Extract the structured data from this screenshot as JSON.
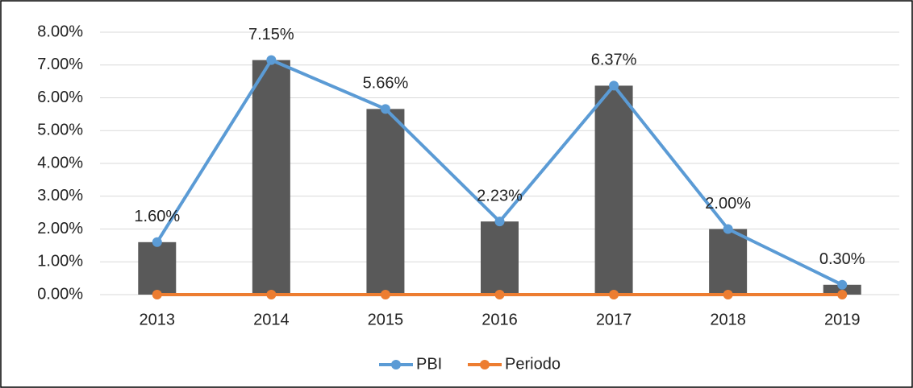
{
  "chart_data": {
    "type": "bar_line",
    "categories": [
      "2013",
      "2014",
      "2015",
      "2016",
      "2017",
      "2018",
      "2019"
    ],
    "series": [
      {
        "name": "PBI",
        "color": "#5b9bd5",
        "bar_color": "#595959",
        "values": [
          1.6,
          7.15,
          5.66,
          2.23,
          6.37,
          2.0,
          0.3
        ],
        "value_labels": [
          "1.60%",
          "7.15%",
          "5.66%",
          "2.23%",
          "6.37%",
          "2.00%",
          "0.30%"
        ]
      },
      {
        "name": "Periodo",
        "color": "#ed7d31",
        "values": [
          0,
          0,
          0,
          0,
          0,
          0,
          0
        ]
      }
    ],
    "ylim": [
      0,
      8
    ],
    "yticks": [
      {
        "value": 0,
        "label": "0.00%"
      },
      {
        "value": 1,
        "label": "1.00%"
      },
      {
        "value": 2,
        "label": "2.00%"
      },
      {
        "value": 3,
        "label": "3.00%"
      },
      {
        "value": 4,
        "label": "4.00%"
      },
      {
        "value": 5,
        "label": "5.00%"
      },
      {
        "value": 6,
        "label": "6.00%"
      },
      {
        "value": 7,
        "label": "7.00%"
      },
      {
        "value": 8,
        "label": "8.00%"
      }
    ],
    "grid": true,
    "legend": "bottom"
  }
}
